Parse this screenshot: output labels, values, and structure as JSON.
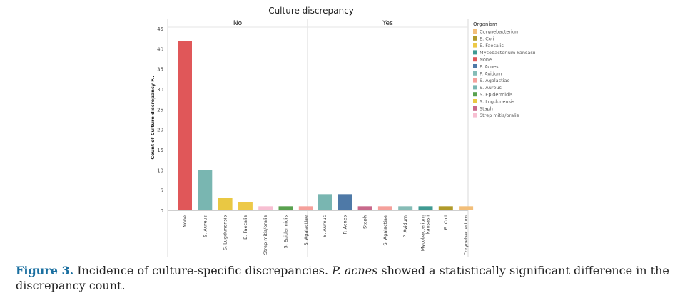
{
  "chart_data": {
    "type": "bar",
    "title": "Culture discrepancy",
    "ylabel": "Count of Culture discrepancy",
    "ylabel_suffix": "F..",
    "ylim": [
      0,
      45
    ],
    "yticks": [
      0,
      5,
      10,
      15,
      20,
      25,
      30,
      35,
      40,
      45
    ],
    "grid": false,
    "legend_placement": "right",
    "legend": {
      "title": "Organism",
      "items": [
        {
          "label": "Corynebacterium",
          "color": "#f2be79"
        },
        {
          "label": "E. Coli",
          "color": "#b09a2a"
        },
        {
          "label": "E. Faecalis",
          "color": "#edc948"
        },
        {
          "label": "Mycobacterium kansasii",
          "color": "#3f9a92"
        },
        {
          "label": "None",
          "color": "#e05759"
        },
        {
          "label": "P. Acnes",
          "color": "#4e79a7"
        },
        {
          "label": "P. Avidum",
          "color": "#86bcb6"
        },
        {
          "label": "S. Agalactiae",
          "color": "#f5a09b"
        },
        {
          "label": "S. Aureus",
          "color": "#79b6b1"
        },
        {
          "label": "S. Epidermidis",
          "color": "#59a14f"
        },
        {
          "label": "S. Lugdunensis",
          "color": "#e9c843"
        },
        {
          "label": "Staph",
          "color": "#c8698b"
        },
        {
          "label": "Strep mitis/oralis",
          "color": "#f7bfd2"
        }
      ]
    },
    "panels": [
      {
        "header": "No",
        "bars": [
          {
            "category": "None",
            "value": 42,
            "color": "#e05759"
          },
          {
            "category": "S. Aureus",
            "value": 10,
            "color": "#79b6b1"
          },
          {
            "category": "S. Lugdunensis",
            "value": 3,
            "color": "#e9c843"
          },
          {
            "category": "E. Faecalis",
            "value": 2,
            "color": "#edc948"
          },
          {
            "category": "Strep mitis/oralis",
            "value": 1,
            "color": "#f7bfd2"
          },
          {
            "category": "S. Epidermidis",
            "value": 1,
            "color": "#59a14f"
          },
          {
            "category": "S. Agalactiae",
            "value": 1,
            "color": "#f5a09b"
          }
        ]
      },
      {
        "header": "Yes",
        "bars": [
          {
            "category": "S. Aureus",
            "value": 4,
            "color": "#79b6b1"
          },
          {
            "category": "P. Acnes",
            "value": 4,
            "color": "#4e79a7"
          },
          {
            "category": "Staph",
            "value": 1,
            "color": "#c8698b"
          },
          {
            "category": "S. Agalactiae",
            "value": 1,
            "color": "#f5a09b"
          },
          {
            "category": "P. Avidum",
            "value": 1,
            "color": "#86bcb6"
          },
          {
            "category": "Mycobacterium kansasii",
            "value": 1,
            "color": "#3f9a92"
          },
          {
            "category": "E. Coli",
            "value": 1,
            "color": "#b09a2a"
          },
          {
            "category": "Corynebacterium",
            "value": 1,
            "color": "#f2be79"
          }
        ]
      }
    ]
  },
  "caption": {
    "label": "Figure 3.",
    "text_before": " Incidence of culture-specific discrepancies. ",
    "italic": "P. acnes",
    "text_after": " showed a statistically significant difference in the discrepancy count."
  }
}
